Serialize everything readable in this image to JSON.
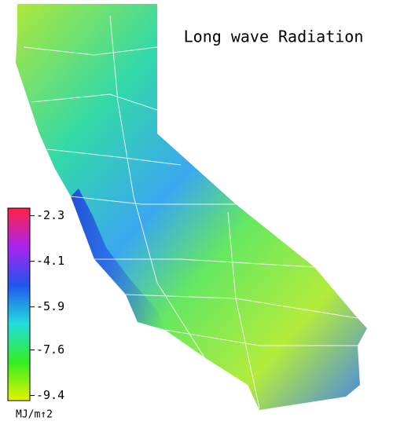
{
  "title": "Long wave Radiation",
  "colorbar": {
    "lim": [
      -9.6,
      -2.0
    ],
    "ticks": [
      -2.3,
      -4.1,
      -5.9,
      -7.6,
      -9.4
    ],
    "unit": "MJ/m↑2",
    "colors": [
      "#e6f200",
      "#33ee22",
      "#22dddd",
      "#2255ee",
      "#aa22ee",
      "#ff2244"
    ]
  }
}
